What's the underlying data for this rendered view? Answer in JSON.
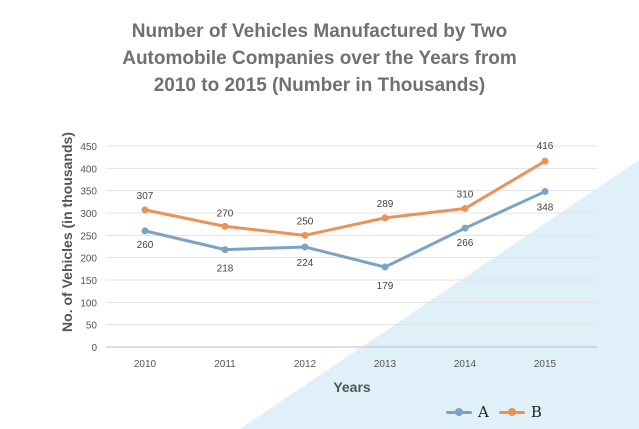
{
  "title_lines": [
    "Number of Vehicles Manufactured by Two",
    "Automobile Companies over the Years from",
    "2010 to 2015  (Number in Thousands)"
  ],
  "chart_data": {
    "type": "line",
    "title": "Number of Vehicles Manufactured by Two Automobile Companies over the Years from 2010 to 2015  (Number in Thousands)",
    "xlabel": "Years",
    "ylabel": "No. of Vehicles (in thousands)",
    "categories": [
      "2010",
      "2011",
      "2012",
      "2013",
      "2014",
      "2015"
    ],
    "ylim": [
      0,
      450
    ],
    "yticks": [
      "0",
      "50",
      "100",
      "150",
      "200",
      "250",
      "300",
      "350",
      "400",
      "450"
    ],
    "grid": true,
    "legend": "bottom-right",
    "series": [
      {
        "name": "A",
        "color": "#7ba3c8",
        "values": [
          260,
          218,
          224,
          179,
          266,
          348
        ],
        "labels": [
          "260",
          "218",
          "224",
          "179",
          "266",
          "348"
        ]
      },
      {
        "name": "B",
        "color": "#e8935a",
        "values": [
          307,
          270,
          250,
          289,
          310,
          416
        ],
        "labels": [
          "307",
          "270",
          "250",
          "289",
          "310",
          "416"
        ]
      }
    ]
  }
}
